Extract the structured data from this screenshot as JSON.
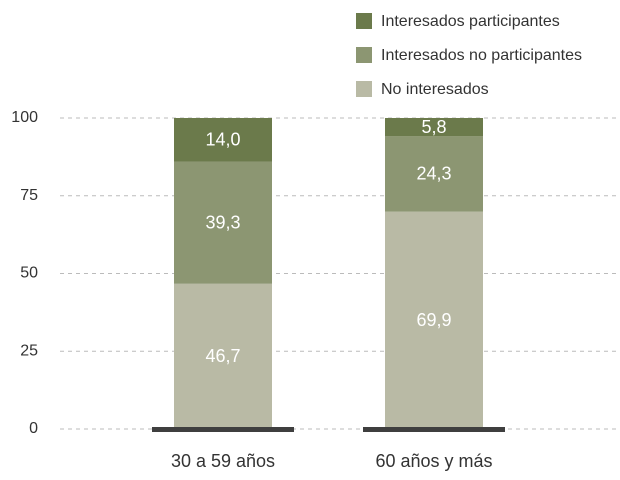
{
  "chart_data": {
    "type": "stacked_bar",
    "categories": [
      "30 a 59 años",
      "60 años y más"
    ],
    "series": [
      {
        "name": "No interesados",
        "color": "#b9baa5",
        "values": [
          46.7,
          69.9
        ],
        "value_labels": [
          "46,7",
          "69,9"
        ]
      },
      {
        "name": "Interesados no participantes",
        "color": "#8c9672",
        "values": [
          39.3,
          24.3
        ],
        "value_labels": [
          "39,3",
          "24,3"
        ]
      },
      {
        "name": "Interesados participantes",
        "color": "#6b7a4b",
        "values": [
          14.0,
          5.8
        ],
        "value_labels": [
          "14,0",
          "5,8"
        ]
      }
    ],
    "ylim": [
      0,
      100
    ],
    "yticks": [
      0,
      25,
      50,
      75,
      100
    ],
    "grid": true
  }
}
